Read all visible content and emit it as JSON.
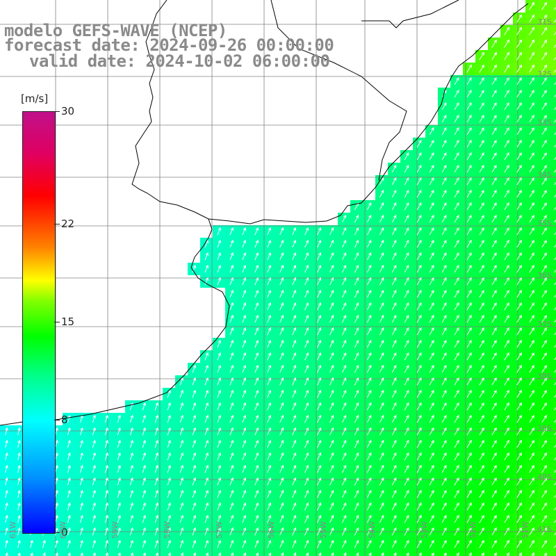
{
  "title": {
    "line1": "modelo GEFS-WAVE (NCEP)",
    "line2": "forecast date: 2024-09-26 00:00:00",
    "line3": "valid date: 2024-10-02 06:00:00"
  },
  "colorbar": {
    "unit": "[m/s]",
    "min": 0,
    "max": 30,
    "ticks": [
      "0",
      "8",
      "15",
      "22",
      "30"
    ],
    "colors": [
      "#0000ff",
      "#0090ff",
      "#00ffff",
      "#00ff80",
      "#00ff00",
      "#ffff00",
      "#ff8000",
      "#ff0000",
      "#c0108a"
    ]
  },
  "map": {
    "lat_labels": [
      "31S",
      "32S",
      "33S",
      "34S",
      "35S",
      "36S",
      "37S",
      "38S",
      "39S",
      "40S",
      "41S"
    ],
    "lon_labels": [
      "61W",
      "60W",
      "59W",
      "58W",
      "57W",
      "56W",
      "55W",
      "54W",
      "53W",
      "52W",
      "51W"
    ],
    "land_color": "#ffffff",
    "coast_color": "#000000",
    "grid_color": "#808080"
  }
}
